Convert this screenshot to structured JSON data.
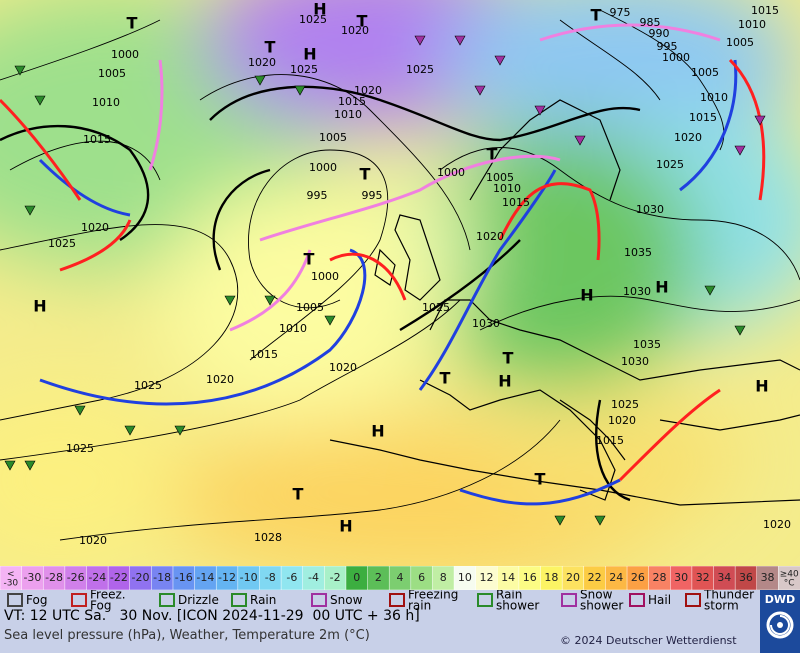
{
  "map": {
    "pressure_labels": [
      "1000",
      "1005",
      "1010",
      "1015",
      "1020",
      "1025",
      "1025",
      "1025",
      "1020",
      "1028",
      "1020",
      "1015",
      "1020",
      "1010",
      "1005",
      "1000",
      "995",
      "995",
      "1000",
      "1005",
      "1010",
      "1015",
      "1020",
      "1025",
      "1020",
      "1025",
      "1025",
      "1020",
      "1000",
      "1005",
      "1010",
      "1015",
      "1020",
      "1025",
      "1030",
      "1035",
      "1030",
      "1025",
      "1020",
      "1015",
      "1010",
      "1005",
      "1000",
      "995",
      "990",
      "985",
      "975",
      "1010",
      "1015",
      "1005",
      "1035",
      "1030",
      "1025",
      "1020",
      "1015",
      "1020",
      "1030"
    ],
    "markers": [
      "H",
      "H",
      "H",
      "H",
      "H",
      "H",
      "H",
      "H",
      "H",
      "T",
      "T",
      "T",
      "T",
      "T",
      "T",
      "T",
      "T",
      "T",
      "T",
      "T"
    ]
  },
  "color_scale": {
    "cells": [
      {
        "label": "<\n-30",
        "color": "#f4b4f4"
      },
      {
        "label": "-30",
        "color": "#eca0ee"
      },
      {
        "label": "-28",
        "color": "#e090ea"
      },
      {
        "label": "-26",
        "color": "#d080ea"
      },
      {
        "label": "-24",
        "color": "#c070ea"
      },
      {
        "label": "-22",
        "color": "#b064ea"
      },
      {
        "label": "-20",
        "color": "#9072f0"
      },
      {
        "label": "-18",
        "color": "#7884f2"
      },
      {
        "label": "-16",
        "color": "#6894f2"
      },
      {
        "label": "-14",
        "color": "#64a4f2"
      },
      {
        "label": "-12",
        "color": "#64b4f2"
      },
      {
        "label": "-10",
        "color": "#70c8f2"
      },
      {
        "label": "-8",
        "color": "#80d8f2"
      },
      {
        "label": "-6",
        "color": "#90e6f0"
      },
      {
        "label": "-4",
        "color": "#a0eee0"
      },
      {
        "label": "-2",
        "color": "#a8f0c8"
      },
      {
        "label": "0",
        "color": "#3cae40"
      },
      {
        "label": "2",
        "color": "#5cbe58"
      },
      {
        "label": "4",
        "color": "#7cce70"
      },
      {
        "label": "6",
        "color": "#9cde84"
      },
      {
        "label": "8",
        "color": "#c0eea4"
      },
      {
        "label": "10",
        "color": "#f6fcf0"
      },
      {
        "label": "12",
        "color": "#fcfcd0"
      },
      {
        "label": "14",
        "color": "#fcfca4"
      },
      {
        "label": "16",
        "color": "#fcfc84"
      },
      {
        "label": "18",
        "color": "#fcf464"
      },
      {
        "label": "20",
        "color": "#fce260"
      },
      {
        "label": "22",
        "color": "#fccc44"
      },
      {
        "label": "24",
        "color": "#fcb844"
      },
      {
        "label": "26",
        "color": "#fca044"
      },
      {
        "label": "28",
        "color": "#f88264"
      },
      {
        "label": "30",
        "color": "#f06464"
      },
      {
        "label": "32",
        "color": "#e05454"
      },
      {
        "label": "34",
        "color": "#d04c54"
      },
      {
        "label": "36",
        "color": "#c04848"
      },
      {
        "label": "38",
        "color": "#b48888"
      },
      {
        "label": "≥40\n°C",
        "color": "#d8c8c8"
      }
    ]
  },
  "legend": [
    "Fog",
    "Freez.\nFog",
    "Drizzle",
    "Rain",
    "Snow",
    "Freezing\nrain",
    "Rain\nshower",
    "Snow\nshower",
    "Hail",
    "Thunder\nstorm"
  ],
  "footer": {
    "valid_time": "VT: 12 UTC Sa.   30 Nov. [ICON 2024-11-29  00 UTC + 36 h]",
    "description": "Sea level pressure (hPa), Weather, Temperature 2m (°C)",
    "copyright": "© 2024 Deutscher Wetterdienst",
    "logo": "DWD"
  }
}
